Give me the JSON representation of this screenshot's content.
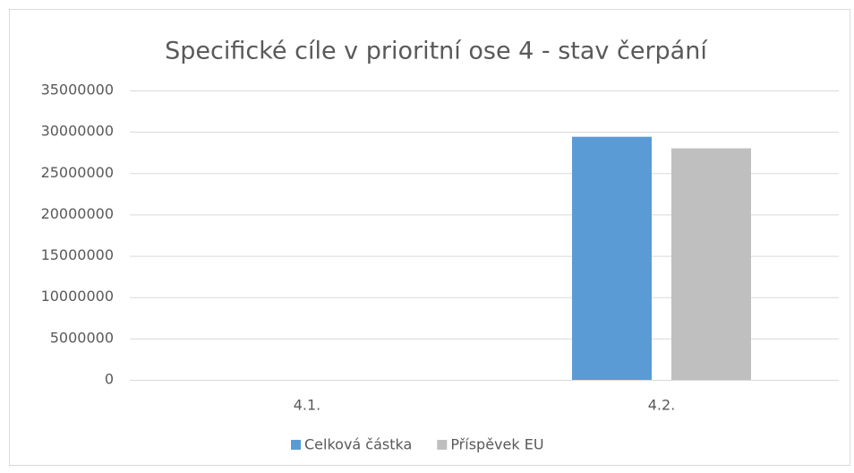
{
  "chart_data": {
    "type": "bar",
    "title": "Specifické cíle v prioritní ose 4 - stav čerpání",
    "categories": [
      "4.1.",
      "4.2."
    ],
    "series": [
      {
        "name": "Celková částka",
        "color": "#5b9bd5",
        "values": [
          0,
          29400000
        ]
      },
      {
        "name": "Příspěvek EU",
        "color": "#bfbfbf",
        "values": [
          0,
          28000000
        ]
      }
    ],
    "ylim": [
      0,
      35000000
    ],
    "yticks": [
      0,
      5000000,
      10000000,
      15000000,
      20000000,
      25000000,
      30000000,
      35000000
    ],
    "grid": true,
    "legend": "bottom"
  }
}
